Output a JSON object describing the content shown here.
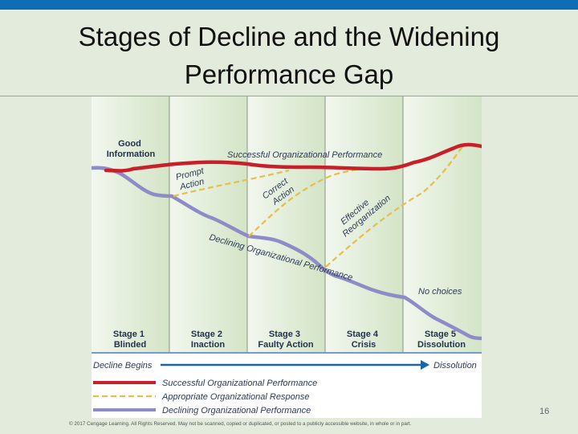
{
  "slide": {
    "title_line1": "Stages of Decline and the Widening",
    "title_line2": "Performance Gap",
    "number": "16",
    "copyright": "© 2017 Cengage Learning. All Rights Reserved. May not be scanned, copied or duplicated, or posted to a publicly accessible website, in whole or in part."
  },
  "diagram": {
    "good_information": [
      "Good",
      "Information"
    ],
    "successful_curve_label": "Successful Organizational Performance",
    "declining_curve_label": "Declining Organizational Performance",
    "responses": {
      "prompt": [
        "Prompt",
        "Action"
      ],
      "correct": [
        "Correct",
        "Action"
      ],
      "reorg": [
        "Effective",
        "Reorganization"
      ],
      "no_choices": "No choices"
    },
    "stages": [
      {
        "line1": "Stage 1",
        "line2": "Blinded"
      },
      {
        "line1": "Stage 2",
        "line2": "Inaction"
      },
      {
        "line1": "Stage 3",
        "line2": "Faulty Action"
      },
      {
        "line1": "Stage 4",
        "line2": "Crisis"
      },
      {
        "line1": "Stage 5",
        "line2": "Dissolution"
      }
    ],
    "arrow": {
      "start": "Decline Begins",
      "end": "Dissolution"
    },
    "legend": [
      {
        "label": "Successful Organizational Performance",
        "color": "#c8202a"
      },
      {
        "label": "Appropriate Organizational Response",
        "color": "#e6be4a"
      },
      {
        "label": "Declining Organizational Performance",
        "color": "#8d8cc6"
      }
    ],
    "colors": {
      "stage_band": "#d7e6cc",
      "arrow": "#1a64a8"
    }
  }
}
